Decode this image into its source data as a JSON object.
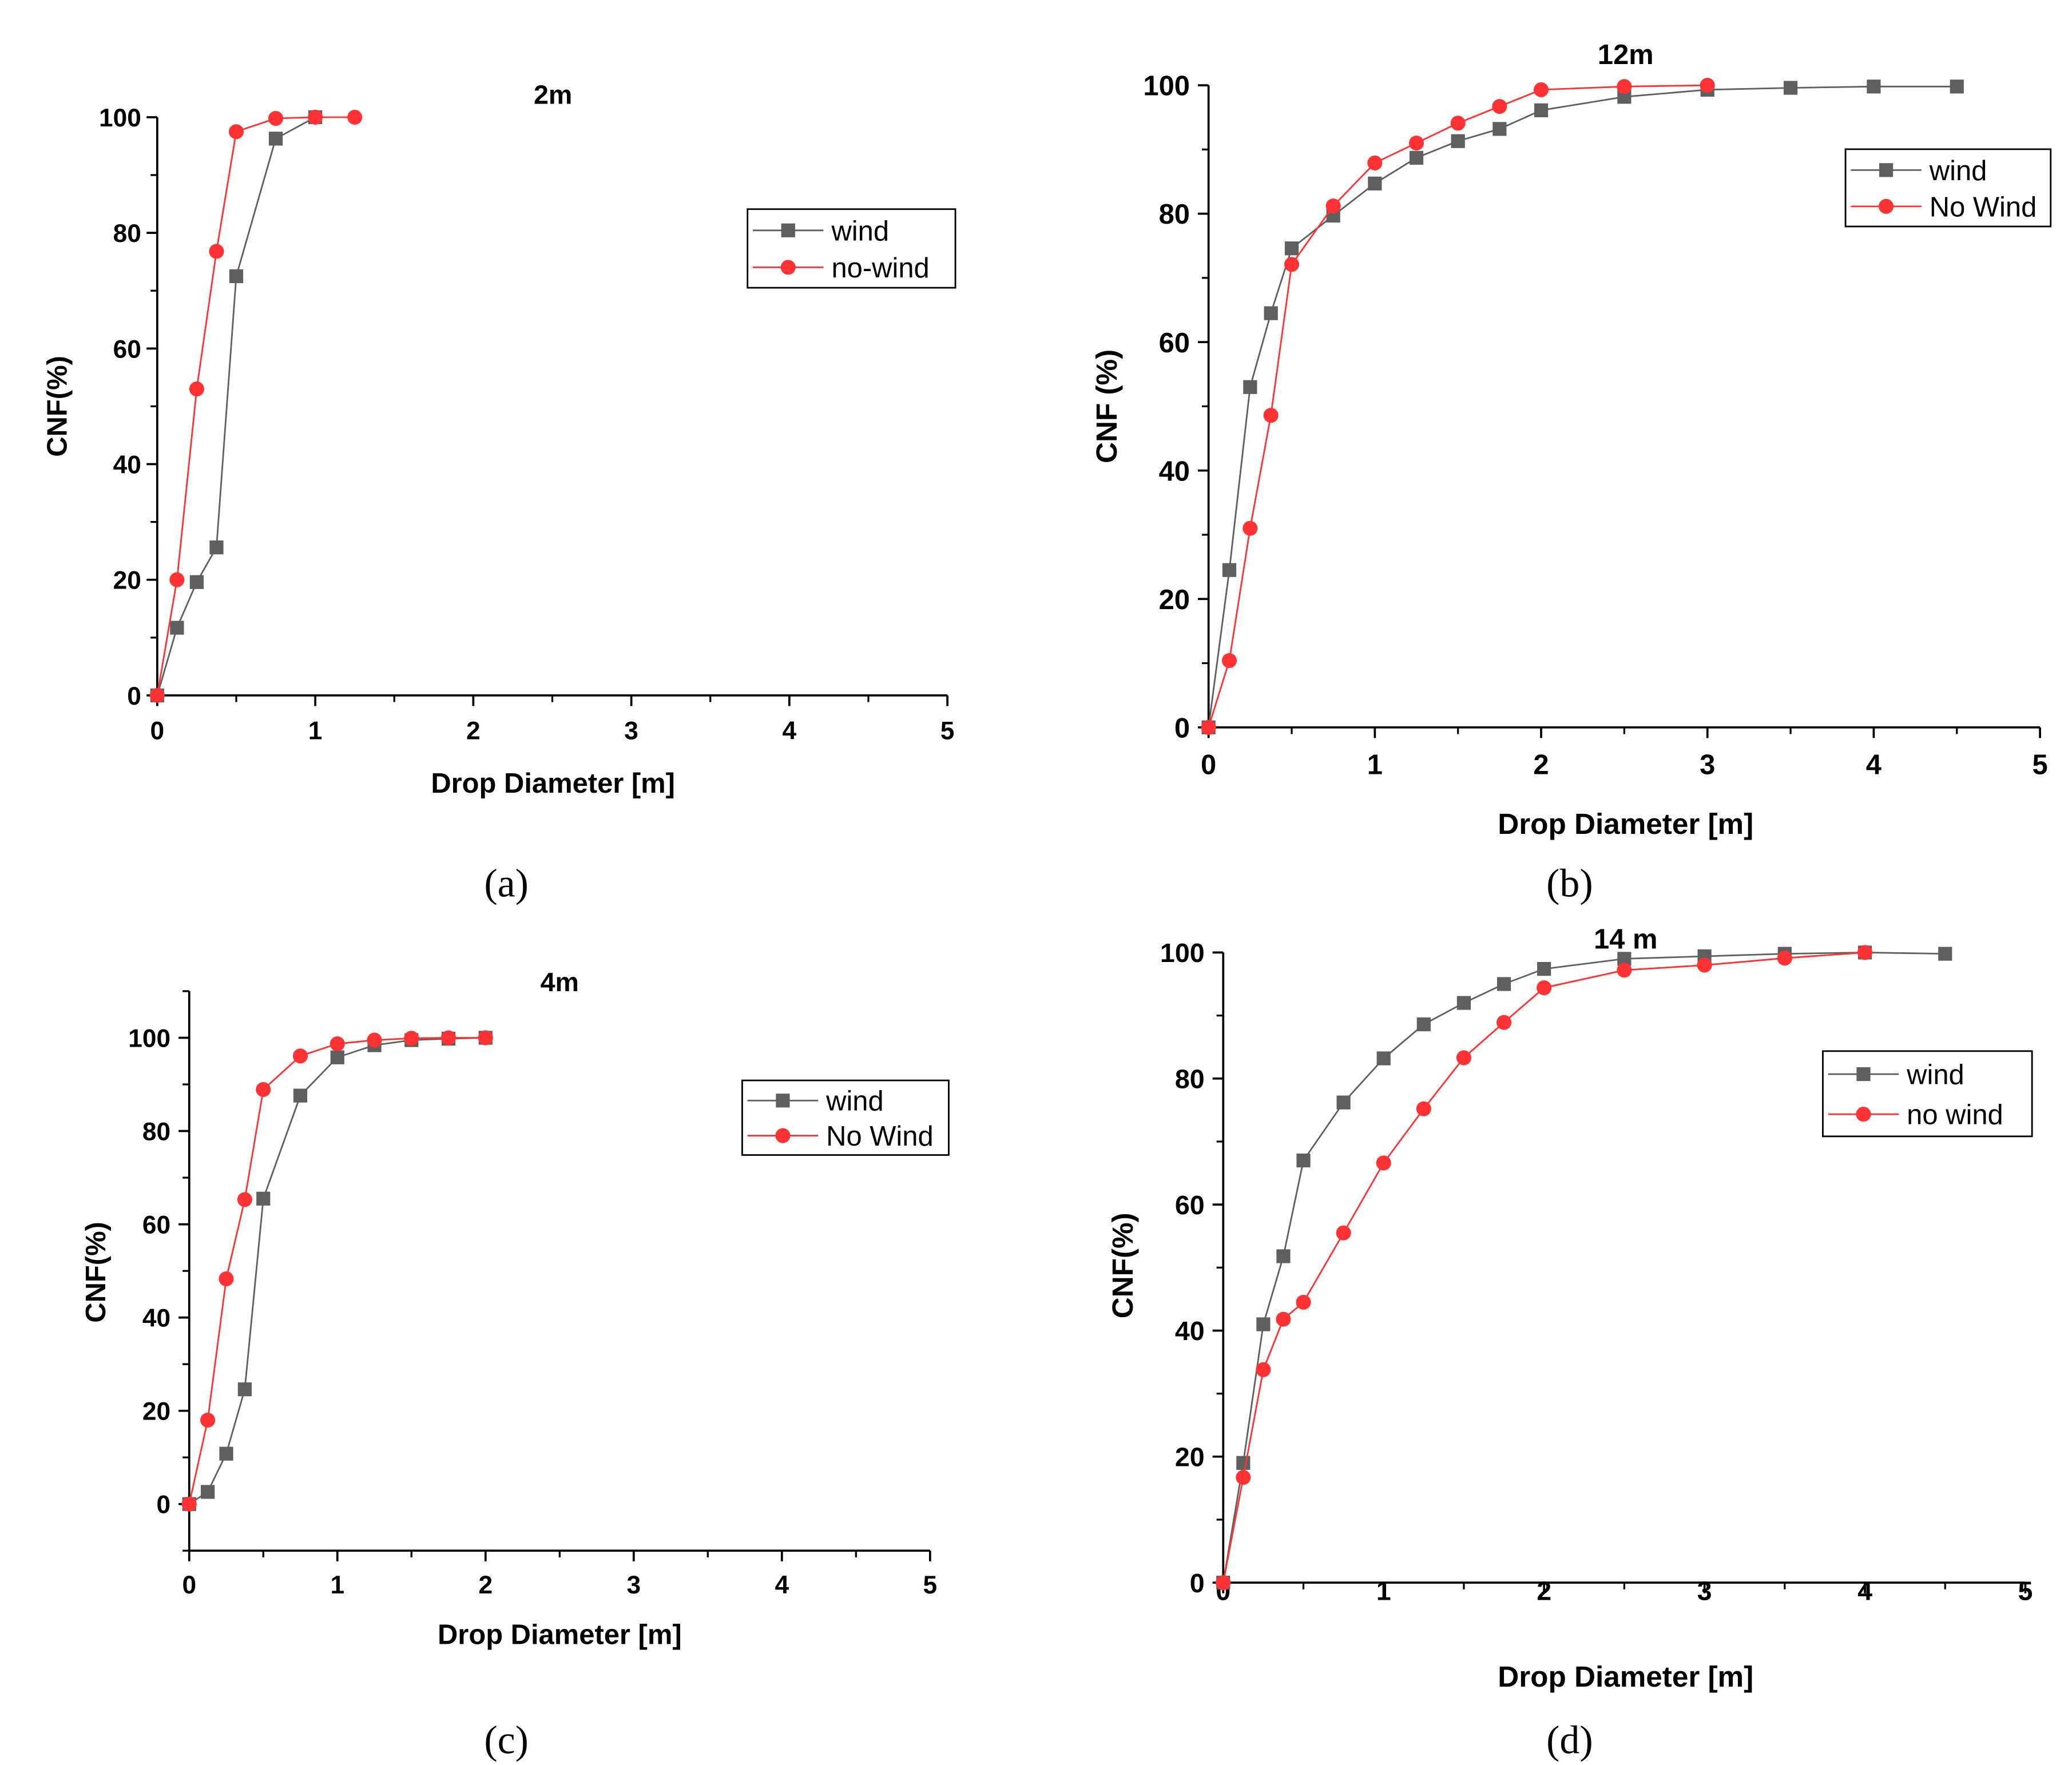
{
  "colors": {
    "wind": "#5f5f5f",
    "no_wind": "#ff3333",
    "axis": "#000000",
    "background": "#ffffff"
  },
  "chart_data": [
    {
      "id": "a",
      "type": "line",
      "title": "2m",
      "caption": "(a)",
      "xlabel": "Drop Diameter [m]",
      "ylabel": "CNF(%)",
      "xlim": [
        0,
        5
      ],
      "ylim": [
        0,
        100
      ],
      "xticks": [
        0,
        1,
        2,
        3,
        4,
        5
      ],
      "yticks": [
        0,
        20,
        40,
        60,
        80,
        100
      ],
      "legend_position": "upper-right",
      "series": [
        {
          "name": "wind",
          "marker": "square",
          "x": [
            0,
            0.125,
            0.25,
            0.375,
            0.5,
            0.75,
            1.0
          ],
          "y": [
            0,
            11.7,
            19.6,
            25.6,
            72.5,
            96.3,
            100
          ]
        },
        {
          "name": "no-wind",
          "marker": "circle",
          "x": [
            0,
            0.125,
            0.25,
            0.375,
            0.5,
            0.75,
            1.0,
            1.25
          ],
          "y": [
            0,
            20,
            53,
            76.8,
            97.5,
            99.8,
            100,
            100
          ]
        }
      ]
    },
    {
      "id": "b",
      "type": "line",
      "title": "12m",
      "caption": "(b)",
      "xlabel": "Drop Diameter [m]",
      "ylabel": "CNF (%)",
      "xlim": [
        0,
        5
      ],
      "ylim": [
        0,
        100
      ],
      "xticks": [
        0,
        1,
        2,
        3,
        4,
        5
      ],
      "yticks": [
        0,
        20,
        40,
        60,
        80,
        100
      ],
      "legend_position": "upper-right",
      "series": [
        {
          "name": "wind",
          "marker": "square",
          "x": [
            0,
            0.125,
            0.25,
            0.375,
            0.5,
            0.75,
            1.0,
            1.25,
            1.5,
            1.75,
            2.0,
            2.5,
            3.0,
            3.5,
            4.0,
            4.5
          ],
          "y": [
            0,
            24.5,
            53,
            64.5,
            74.6,
            79.7,
            84.7,
            88.7,
            91.3,
            93.2,
            96.1,
            98.2,
            99.3,
            99.6,
            99.8,
            99.8
          ]
        },
        {
          "name": "No Wind",
          "marker": "circle",
          "x": [
            0,
            0.125,
            0.25,
            0.375,
            0.5,
            0.75,
            1.0,
            1.25,
            1.5,
            1.75,
            2.0,
            2.5,
            3.0
          ],
          "y": [
            0,
            10.4,
            31,
            48.6,
            72.1,
            81.2,
            87.9,
            91,
            94.1,
            96.7,
            99.3,
            99.8,
            100
          ]
        }
      ]
    },
    {
      "id": "c",
      "type": "line",
      "title": "4m",
      "caption": "(c)",
      "xlabel": "Drop Diameter [m]",
      "ylabel": "CNF(%)",
      "xlim": [
        0,
        5
      ],
      "ylim": [
        -10,
        110
      ],
      "xticks": [
        0,
        1,
        2,
        3,
        4,
        5
      ],
      "yticks": [
        0,
        20,
        40,
        60,
        80,
        100
      ],
      "legend_position": "right",
      "series": [
        {
          "name": "wind",
          "marker": "square",
          "x": [
            0,
            0.125,
            0.25,
            0.375,
            0.5,
            0.75,
            1.0,
            1.25,
            1.5,
            1.75,
            2.0
          ],
          "y": [
            0,
            2.6,
            10.8,
            24.6,
            65.5,
            87.6,
            95.8,
            98.4,
            99.5,
            99.8,
            100
          ]
        },
        {
          "name": "No Wind",
          "marker": "circle",
          "x": [
            0,
            0.125,
            0.25,
            0.375,
            0.5,
            0.75,
            1.0,
            1.25,
            1.5,
            1.75,
            2.0
          ],
          "y": [
            0,
            18,
            48.3,
            65.3,
            88.9,
            96.1,
            98.7,
            99.5,
            99.9,
            100,
            100
          ]
        }
      ]
    },
    {
      "id": "d",
      "type": "line",
      "title": "14 m",
      "caption": "(d)",
      "xlabel": "Drop Diameter [m]",
      "ylabel": "CNF(%)",
      "xlim": [
        0,
        5
      ],
      "ylim": [
        0,
        100
      ],
      "xticks": [
        0,
        1,
        2,
        3,
        4,
        5
      ],
      "yticks": [
        0,
        20,
        40,
        60,
        80,
        100
      ],
      "legend_position": "upper-right",
      "series": [
        {
          "name": "wind",
          "marker": "square",
          "x": [
            0,
            0.125,
            0.25,
            0.375,
            0.5,
            0.75,
            1.0,
            1.25,
            1.5,
            1.75,
            2.0,
            2.5,
            3.0,
            3.5,
            4.0,
            4.5
          ],
          "y": [
            0,
            19,
            41,
            51.8,
            67,
            76.2,
            83.2,
            88.6,
            92,
            95,
            97.4,
            99,
            99.4,
            99.8,
            100,
            99.8
          ]
        },
        {
          "name": "no wind",
          "marker": "circle",
          "x": [
            0,
            0.125,
            0.25,
            0.375,
            0.5,
            0.75,
            1.0,
            1.25,
            1.5,
            1.75,
            2.0,
            2.5,
            3.0,
            3.5,
            4.0
          ],
          "y": [
            0,
            16.7,
            33.8,
            41.8,
            44.5,
            55.5,
            66.6,
            75.2,
            83.3,
            88.9,
            94.4,
            97.2,
            98,
            99.1,
            100
          ]
        }
      ]
    }
  ]
}
